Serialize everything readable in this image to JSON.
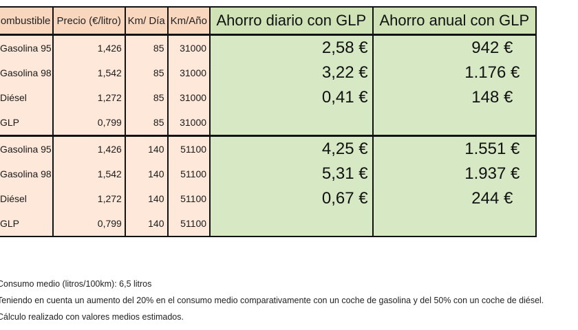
{
  "headers": {
    "fuel": "Combustible",
    "price": "Precio (€/litro)",
    "km_day": "Km/ Día",
    "km_year": "Km/Año",
    "daily_saving": "Ahorro diario con GLP",
    "annual_saving": "Ahorro anual con GLP"
  },
  "groups": [
    {
      "rows": [
        {
          "fuel": "Gasolina 95",
          "price": "1,426",
          "km_day": "85",
          "km_year": "31000",
          "daily": "2,58 €",
          "annual": "942 €"
        },
        {
          "fuel": "Gasolina 98",
          "price": "1,542",
          "km_day": "85",
          "km_year": "31000",
          "daily": "3,22 €",
          "annual": "1.176 €"
        },
        {
          "fuel": "Diésel",
          "price": "1,272",
          "km_day": "85",
          "km_year": "31000",
          "daily": "0,41 €",
          "annual": "148 €"
        },
        {
          "fuel": "GLP",
          "price": "0,799",
          "km_day": "85",
          "km_year": "31000",
          "daily": "",
          "annual": ""
        }
      ]
    },
    {
      "rows": [
        {
          "fuel": "Gasolina 95",
          "price": "1,426",
          "km_day": "140",
          "km_year": "51100",
          "daily": "4,25 €",
          "annual": "1.551 €"
        },
        {
          "fuel": "Gasolina 98",
          "price": "1,542",
          "km_day": "140",
          "km_year": "51100",
          "daily": "5,31 €",
          "annual": "1.937 €"
        },
        {
          "fuel": "Diésel",
          "price": "1,272",
          "km_day": "140",
          "km_year": "51100",
          "daily": "0,67 €",
          "annual": "244 €"
        },
        {
          "fuel": "GLP",
          "price": "0,799",
          "km_day": "140",
          "km_year": "51100",
          "daily": "",
          "annual": ""
        }
      ]
    }
  ],
  "notes": [
    "Consumo medio (litros/100km): 6,5 litros",
    "Teniendo en cuenta un aumento del 20% en el consumo medio comparativamente con un coche de gasolina y del 50% con un coche de diésel.",
    "Cálculo realizado con valores medios estimados."
  ],
  "colors": {
    "peach_header": "#f9d7bf",
    "peach_cell": "#fde8da",
    "green": "#d7e8c4",
    "border": "#111111"
  }
}
